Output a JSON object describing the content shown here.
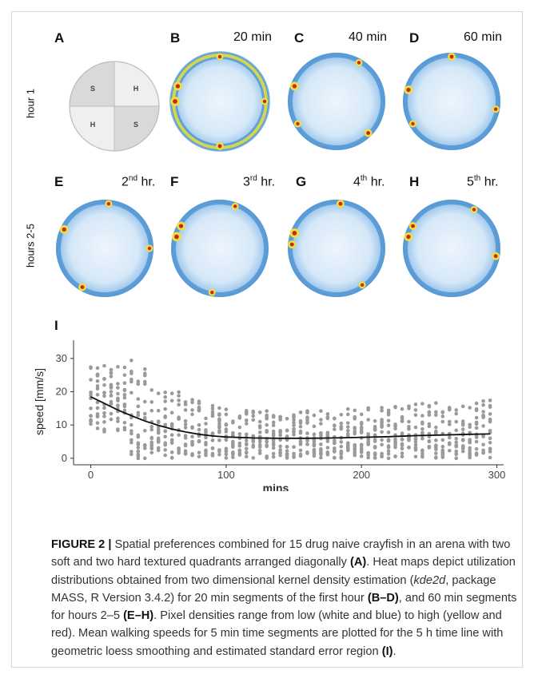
{
  "panels": {
    "A": "A",
    "B": "B",
    "C": "C",
    "D": "D",
    "E": "E",
    "F": "F",
    "G": "G",
    "H": "H",
    "I": "I"
  },
  "row_labels": {
    "hour1": "hour 1",
    "hours2_5": "hours 2-5"
  },
  "times": {
    "B": "20 min",
    "C": "40 min",
    "D": "60 min",
    "E_num": "2",
    "E_sup": "nd",
    "E_rest": " hr.",
    "F_num": "3",
    "F_sup": "rd",
    "F_rest": " hr.",
    "G_num": "4",
    "G_sup": "th",
    "G_rest": " hr.",
    "H_num": "5",
    "H_sup": "th",
    "H_rest": " hr."
  },
  "quadrants": {
    "top_left": "S",
    "top_right": "H",
    "bottom_left": "H",
    "bottom_right": "S"
  },
  "colors": {
    "soft_quadrant": "#d9d9d9",
    "hard_quadrant": "#efefef",
    "heat_low": "#4a90d0",
    "heat_mid": "#e8e23a",
    "heat_high": "#d62020",
    "points": "#9a9a9a"
  },
  "chart_data": {
    "type": "scatter",
    "title": "",
    "xlabel": "mins",
    "ylabel": "speed [mm/s]",
    "xlim": [
      -8,
      305
    ],
    "ylim": [
      -1,
      35
    ],
    "x_ticks": [
      0,
      100,
      200,
      300
    ],
    "y_ticks": [
      0,
      10,
      20,
      30
    ],
    "grid": false,
    "trend_line": {
      "x": [
        0,
        10,
        20,
        30,
        40,
        50,
        60,
        70,
        80,
        90,
        100,
        120,
        140,
        160,
        180,
        200,
        220,
        240,
        260,
        280,
        295
      ],
      "y": [
        18.5,
        16.5,
        14.5,
        12.8,
        11.2,
        9.9,
        8.8,
        7.9,
        7.2,
        6.7,
        6.4,
        6.1,
        6.0,
        6.0,
        6.1,
        6.3,
        6.5,
        6.8,
        7.0,
        7.2,
        7.3
      ]
    },
    "points": []
  },
  "caption": {
    "label": "FIGURE 2 |",
    "p1": " Spatial preferences combined for 15 drug naive crayfish in an arena with two soft and two hard textured quadrants arranged diagonally ",
    "r1": "(A)",
    "p2": ". Heat maps depict utilization distributions obtained from two dimensional kernel density estimation (",
    "kde": "kde2d",
    "p3": ", package MASS, R Version 3.4.2) for 20 min segments of the first hour ",
    "r2": "(B–D)",
    "p4": ", and 60 min segments for hours 2–5 ",
    "r3": "(E–H)",
    "p5": ". Pixel densities range from low (white and blue) to high (yellow and red). Mean walking speeds for 5 min time segments are plotted for the 5 h time line with geometric loess smoothing and estimated standard error region ",
    "r4": "(I)",
    "p6": "."
  }
}
